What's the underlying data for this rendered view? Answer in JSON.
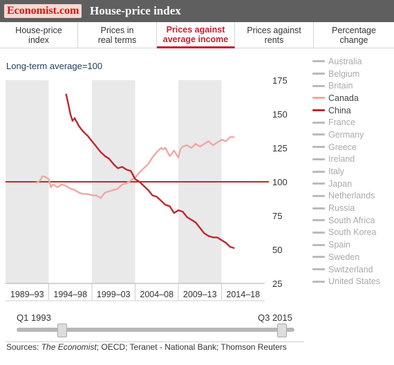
{
  "header": {
    "logo_text": "Economist.com",
    "title": "House-price index"
  },
  "tabs": [
    {
      "label": "House-price\nindex",
      "active": false
    },
    {
      "label": "Prices in\nreal terms",
      "active": false
    },
    {
      "label": "Prices against\naverage income",
      "active": true
    },
    {
      "label": "Prices against\nrents",
      "active": false
    },
    {
      "label": "Percentage\nchange",
      "active": false
    }
  ],
  "subtitle": "Long-term average=100",
  "legend": [
    {
      "label": "Australia",
      "active": false
    },
    {
      "label": "Belgium",
      "active": false
    },
    {
      "label": "Britain",
      "active": false
    },
    {
      "label": "Canada",
      "active": true,
      "color": "#f0a8a4"
    },
    {
      "label": "China",
      "active": true,
      "color": "#c1272d"
    },
    {
      "label": "France",
      "active": false
    },
    {
      "label": "Germany",
      "active": false
    },
    {
      "label": "Greece",
      "active": false
    },
    {
      "label": "Ireland",
      "active": false
    },
    {
      "label": "Italy",
      "active": false
    },
    {
      "label": "Japan",
      "active": false
    },
    {
      "label": "Netherlands",
      "active": false
    },
    {
      "label": "Russia",
      "active": false
    },
    {
      "label": "South Africa",
      "active": false
    },
    {
      "label": "South Korea",
      "active": false
    },
    {
      "label": "Spain",
      "active": false
    },
    {
      "label": "Sweden",
      "active": false
    },
    {
      "label": "Switzerland",
      "active": false
    },
    {
      "label": "United States",
      "active": false
    }
  ],
  "range": {
    "start_label": "Q1 1993",
    "end_label": "Q3 2015",
    "start_fraction": 0.165,
    "end_fraction": 0.955
  },
  "sources": {
    "prefix": "Sources: ",
    "italic": "The Economist",
    "rest": "; OECD; Teranet - National Bank; Thomson Reuters"
  },
  "colors": {
    "reference_line": "#c1272d",
    "band": "#e9e9e9",
    "legend_inactive": "#bbbbbb"
  },
  "chart_data": {
    "type": "line",
    "title": "House-price index",
    "subtitle": "Long-term average=100",
    "ylim": [
      25,
      175
    ],
    "xlim": [
      1989,
      2019
    ],
    "yticks": [
      175,
      150,
      125,
      100,
      75,
      50,
      25
    ],
    "x_bands": [
      {
        "label": "1989–93",
        "start": 1989,
        "end": 1994,
        "shaded": true
      },
      {
        "label": "1994–98",
        "start": 1994,
        "end": 1999,
        "shaded": false
      },
      {
        "label": "1999–03",
        "start": 1999,
        "end": 2004,
        "shaded": true
      },
      {
        "label": "2004–08",
        "start": 2004,
        "end": 2009,
        "shaded": false
      },
      {
        "label": "2009–13",
        "start": 2009,
        "end": 2014,
        "shaded": true
      },
      {
        "label": "2014–18",
        "start": 2014,
        "end": 2019,
        "shaded": false
      }
    ],
    "reference_line": 100,
    "series": [
      {
        "name": "Canada",
        "color": "#f0a8a4",
        "x": [
          1992.5,
          1993.0,
          1993.25,
          1993.5,
          1994.0,
          1994.25,
          1994.5,
          1995.0,
          1995.5,
          1996.0,
          1996.5,
          1997.0,
          1997.5,
          1998.0,
          1998.5,
          1999.0,
          1999.5,
          2000.0,
          2000.5,
          2001.0,
          2001.5,
          2002.0,
          2002.5,
          2003.0,
          2003.5,
          2004.0,
          2004.5,
          2005.0,
          2005.5,
          2006.0,
          2006.5,
          2007.0,
          2007.25,
          2007.5,
          2008.0,
          2008.5,
          2009.0,
          2009.25,
          2009.5,
          2010.0,
          2010.5,
          2011.0,
          2011.5,
          2012.0,
          2012.5,
          2013.0,
          2013.5,
          2014.0,
          2014.5,
          2015.0,
          2015.5
        ],
        "values": [
          99,
          101,
          104,
          104,
          102,
          96,
          98,
          96,
          98,
          97,
          95,
          94,
          92,
          91,
          91,
          90,
          90,
          88,
          92,
          93,
          94,
          95,
          98,
          99,
          101,
          103,
          107,
          110,
          113,
          118,
          122,
          125,
          124,
          125,
          119,
          123,
          118,
          124,
          126,
          127,
          125,
          128,
          126,
          128,
          130,
          127,
          129,
          131,
          130,
          133,
          133
        ]
      },
      {
        "name": "China",
        "color": "#c1272d",
        "x": [
          1996.0,
          1996.25,
          1996.5,
          1996.75,
          1997.0,
          1997.5,
          1998.0,
          1998.5,
          1999.0,
          1999.5,
          2000.0,
          2000.5,
          2001.0,
          2001.5,
          2002.0,
          2002.5,
          2003.0,
          2003.5,
          2004.0,
          2004.5,
          2005.0,
          2005.5,
          2006.0,
          2006.5,
          2007.0,
          2007.5,
          2008.0,
          2008.5,
          2009.0,
          2009.5,
          2010.0,
          2010.5,
          2011.0,
          2011.5,
          2012.0,
          2012.5,
          2013.0,
          2013.5,
          2014.0,
          2014.5,
          2015.0,
          2015.5
        ],
        "values": [
          165,
          158,
          150,
          145,
          147,
          141,
          137,
          134,
          130,
          126,
          122,
          119,
          117,
          113,
          110,
          111,
          109,
          108,
          102,
          100,
          97,
          94,
          90,
          89,
          86,
          83,
          82,
          77,
          79,
          78,
          74,
          72,
          70,
          66,
          62,
          60,
          59,
          59,
          57,
          55,
          52,
          51
        ]
      }
    ]
  }
}
